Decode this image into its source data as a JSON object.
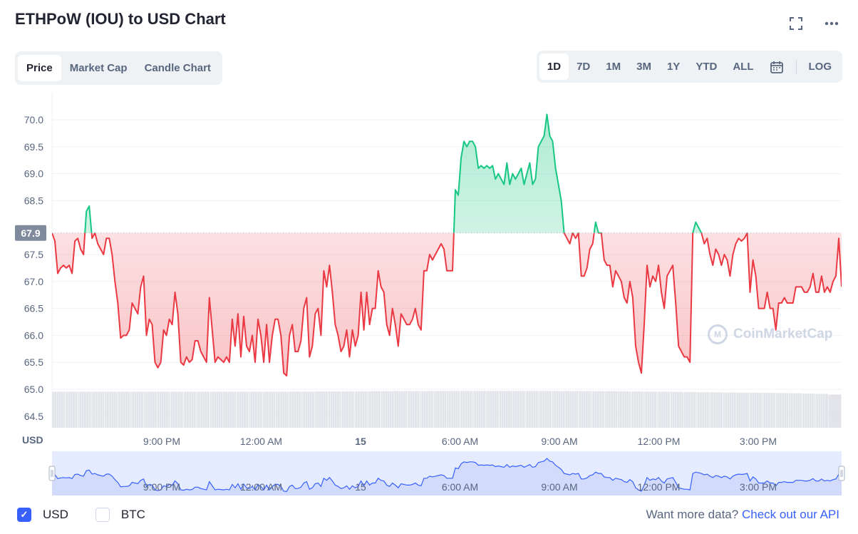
{
  "header": {
    "title": "ETHPoW (IOU) to USD Chart"
  },
  "tabs": [
    "Price",
    "Market Cap",
    "Candle Chart"
  ],
  "active_tab": 0,
  "ranges": [
    "1D",
    "7D",
    "1M",
    "3M",
    "1Y",
    "YTD",
    "ALL"
  ],
  "active_range": 0,
  "log_label": "LOG",
  "legend": {
    "usd": "USD",
    "btc": "BTC",
    "usd_checked": true,
    "btc_checked": false
  },
  "api": {
    "prefix": "Want more data?",
    "link": "Check out our API"
  },
  "watermark": "CoinMarketCap",
  "colors": {
    "up": "#16c784",
    "down": "#ea3943",
    "accent": "#3861fb"
  },
  "chart_data": {
    "type": "line",
    "ylabel": "USD",
    "reference_price": 67.9,
    "reference_label": "67.9",
    "ylim": [
      64.3,
      70.3
    ],
    "yticks": [
      70.0,
      69.5,
      69.0,
      68.5,
      67.9,
      67.5,
      67.0,
      66.5,
      66.0,
      65.5,
      65.0,
      64.5
    ],
    "xticks": [
      "9:00 PM",
      "12:00 AM",
      "15",
      "6:00 AM",
      "9:00 AM",
      "12:00 PM",
      "3:00 PM"
    ],
    "xtick_hours": [
      21,
      24,
      27,
      30,
      33,
      36,
      39
    ],
    "x_start_hour": 17.75,
    "x_end_hour": 41.5,
    "values": [
      67.9,
      67.75,
      67.15,
      67.25,
      67.3,
      67.25,
      67.3,
      67.15,
      67.75,
      67.8,
      67.6,
      67.5,
      68.3,
      68.4,
      67.8,
      67.9,
      67.7,
      67.6,
      67.5,
      67.8,
      67.8,
      67.5,
      67.0,
      66.6,
      65.95,
      66.0,
      66.0,
      66.1,
      66.6,
      66.5,
      66.4,
      66.9,
      67.1,
      66.0,
      66.3,
      66.2,
      65.5,
      65.4,
      65.5,
      66.1,
      66.0,
      66.3,
      66.2,
      66.8,
      66.4,
      65.5,
      65.45,
      65.6,
      65.5,
      65.55,
      65.9,
      65.9,
      65.7,
      65.6,
      65.5,
      66.7,
      66.1,
      65.5,
      65.6,
      65.55,
      65.5,
      65.6,
      65.5,
      66.3,
      65.8,
      66.4,
      65.6,
      66.35,
      65.8,
      65.7,
      66.0,
      65.5,
      66.3,
      66.0,
      65.5,
      66.2,
      65.5,
      66.0,
      66.3,
      66.3,
      66.0,
      65.3,
      65.25,
      66.0,
      66.2,
      65.7,
      65.7,
      65.9,
      66.5,
      66.7,
      65.6,
      65.8,
      66.4,
      66.5,
      66.0,
      67.2,
      66.9,
      67.3,
      66.8,
      66.2,
      66.0,
      65.7,
      65.8,
      66.1,
      65.6,
      66.1,
      65.8,
      66.0,
      66.8,
      66.1,
      66.8,
      66.2,
      66.5,
      66.5,
      67.2,
      66.9,
      66.8,
      66.2,
      66.0,
      66.5,
      66.2,
      65.8,
      66.4,
      66.3,
      66.2,
      66.2,
      66.3,
      66.5,
      66.2,
      66.1,
      67.2,
      67.2,
      67.5,
      67.4,
      67.5,
      67.6,
      67.7,
      67.6,
      67.2,
      67.2,
      67.2,
      68.7,
      68.6,
      69.3,
      69.6,
      69.5,
      69.6,
      69.6,
      69.5,
      69.1,
      69.15,
      69.1,
      69.15,
      69.1,
      69.15,
      68.9,
      69.0,
      68.9,
      68.8,
      69.2,
      68.8,
      69.0,
      68.9,
      69.0,
      69.1,
      68.8,
      69.0,
      69.2,
      68.8,
      68.9,
      69.5,
      69.6,
      69.7,
      70.1,
      69.7,
      69.6,
      69.1,
      68.8,
      68.5,
      67.9,
      67.8,
      67.7,
      67.9,
      67.8,
      67.9,
      67.1,
      67.1,
      67.25,
      67.6,
      67.7,
      68.1,
      67.9,
      67.9,
      67.4,
      67.3,
      67.3,
      66.9,
      67.2,
      67.1,
      67.0,
      66.7,
      66.6,
      67.0,
      66.7,
      65.8,
      65.5,
      65.3,
      66.2,
      67.3,
      66.9,
      67.1,
      67.0,
      67.3,
      66.8,
      66.5,
      67.1,
      67.2,
      67.3,
      66.6,
      65.8,
      65.7,
      65.6,
      65.6,
      65.5,
      67.9,
      68.1,
      68.0,
      67.9,
      67.7,
      67.8,
      67.5,
      67.3,
      67.6,
      67.5,
      67.3,
      67.5,
      67.4,
      67.1,
      67.5,
      67.7,
      67.8,
      67.75,
      67.8,
      67.9,
      66.8,
      67.4,
      67.1,
      66.5,
      66.5,
      66.5,
      66.8,
      66.5,
      66.5,
      66.1,
      66.6,
      66.6,
      66.7,
      66.6,
      66.6,
      66.6,
      66.9,
      66.9,
      66.9,
      66.8,
      66.8,
      66.9,
      67.15,
      66.8,
      66.8,
      67.1,
      66.8,
      66.9,
      66.8,
      67.0,
      67.1,
      67.8,
      66.9
    ],
    "volume_level": [
      0.42,
      0.42,
      0.42,
      0.42,
      0.42,
      0.42,
      0.42,
      0.42,
      0.42,
      0.42,
      0.42,
      0.42,
      0.42,
      0.42,
      0.42,
      0.42,
      0.42,
      0.42,
      0.43,
      0.43,
      0.44,
      0.44,
      0.45,
      0.45,
      0.46,
      0.46,
      0.47,
      0.47,
      0.47,
      0.47,
      0.48,
      0.48,
      0.48,
      0.48,
      0.48,
      0.48,
      0.48,
      0.48,
      0.47,
      0.47,
      0.47,
      0.46,
      0.46,
      0.45,
      0.44,
      0.43,
      0.42,
      0.41,
      0.4,
      0.38,
      0.37,
      0.36,
      0.35,
      0.34,
      0.33,
      0.32,
      0.3,
      0.28,
      0.26,
      0.2
    ]
  },
  "navigator": {
    "xticks": [
      "9:00 PM",
      "12:00 AM",
      "15",
      "6:00 AM",
      "9:00 AM",
      "12:00 PM",
      "3:00 PM"
    ]
  }
}
